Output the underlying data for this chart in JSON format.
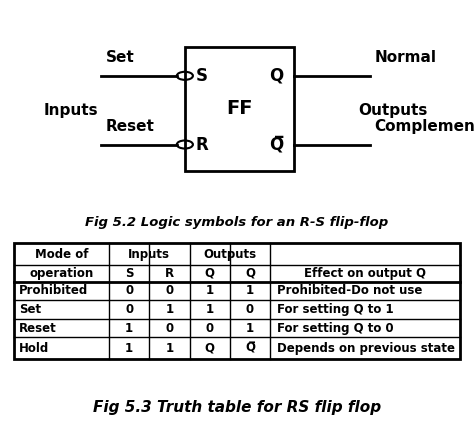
{
  "fig_width": 4.74,
  "fig_height": 4.47,
  "dpi": 100,
  "bg_color": "#ffffff",
  "fig1_title": "Fig 5.2 Logic symbols for an R-S flip-flop",
  "fig2_title": "Fig 5.3 Truth table for RS flip flop",
  "box_label": "FF",
  "input_top_label": "S",
  "input_bot_label": "R",
  "output_top_label": "Q",
  "output_bot_label": "Q̅",
  "left_top": "Set",
  "left_bot": "Reset",
  "left_mid": "Inputs",
  "right_top": "Normal",
  "right_bot": "Complementrary",
  "right_mid": "Outputs",
  "table_header_row1_col1": "Mode of",
  "table_header_row2_col1": "operation",
  "table_header_inputs": "Inputs",
  "table_header_outputs": "Outputs",
  "table_header_cols": [
    "S",
    "R",
    "Q",
    "Q",
    "Effect on output Q"
  ],
  "table_header_col3_bar": true,
  "table_rows": [
    [
      "Prohibited",
      "0",
      "0",
      "1",
      "1",
      "Prohibited-Do not use"
    ],
    [
      "Set",
      "0",
      "1",
      "1",
      "0",
      "For setting Q to 1"
    ],
    [
      "Reset",
      "1",
      "0",
      "0",
      "1",
      "For setting Q to 0"
    ],
    [
      "Hold",
      "1",
      "1",
      "Q",
      "Q̅",
      "Depends on previous state"
    ]
  ]
}
